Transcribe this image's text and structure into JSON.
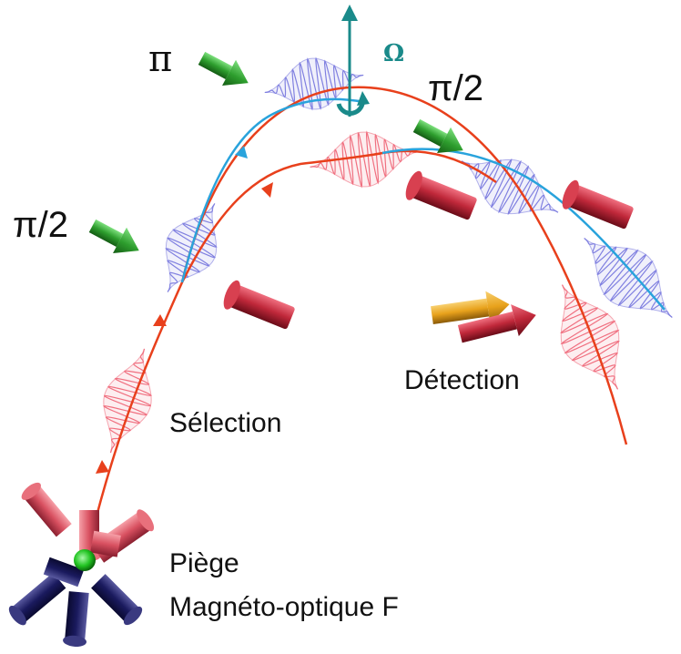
{
  "labels": {
    "pi": "π",
    "pi_half_left": "π/2",
    "pi_half_right": "π/2",
    "omega": "Ω",
    "selection": "Sélection",
    "detection": "Détection",
    "trap_line1": "Piège",
    "trap_line2": "Magnéto-optique F"
  },
  "colors": {
    "red_trajectory": "#e8401c",
    "blue_trajectory": "#29a3dc",
    "omega_axis": "#1a8a8a",
    "raman_beam": "#2e9e2e",
    "detection_beam": "#c0283a",
    "trap_beam_upper": "#d85060",
    "trap_beam_lower": "#1a1a5e",
    "atom_cloud": "#22c422",
    "probe_beam_yellow": "#e8a21c"
  }
}
